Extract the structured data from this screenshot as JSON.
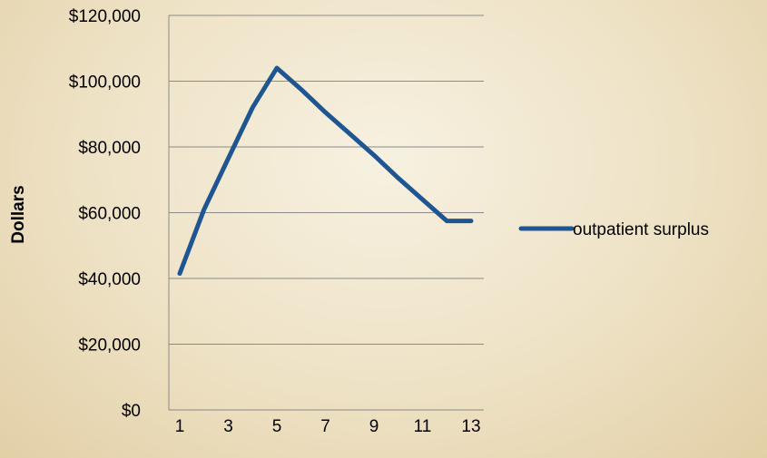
{
  "chart_data": {
    "type": "line",
    "x": [
      1,
      2,
      3,
      4,
      5,
      6,
      7,
      8,
      9,
      10,
      11,
      12,
      13
    ],
    "series": [
      {
        "name": "outpatient surplus",
        "values": [
          41500,
          61000,
          76500,
          92000,
          104000,
          97500,
          90500,
          84000,
          77500,
          70500,
          64000,
          57500,
          57500
        ],
        "color": "#1f5591"
      }
    ],
    "xticks": [
      "1",
      "3",
      "5",
      "7",
      "9",
      "11",
      "13"
    ],
    "yticks": [
      "$0",
      "$20,000",
      "$40,000",
      "$60,000",
      "$80,000",
      "$100,000",
      "$120,000"
    ],
    "ylabel": "Dollars",
    "xlabel": "",
    "title": "",
    "ylim": [
      0,
      120000
    ],
    "xlim": [
      1,
      13
    ],
    "grid": "horizontal",
    "legend": "right"
  }
}
